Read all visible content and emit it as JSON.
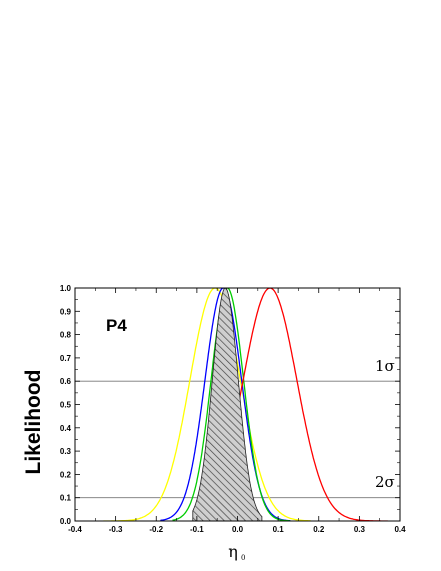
{
  "chart_data": {
    "type": "line",
    "panel_label": "P4",
    "ylabel": "Likelihood",
    "xlabel": "η",
    "xlabel_subscript": "0",
    "xlim": [
      -0.4,
      0.4
    ],
    "ylim": [
      0.0,
      1.0
    ],
    "xticks": [
      -0.4,
      -0.3,
      -0.2,
      -0.1,
      0.0,
      0.1,
      0.2,
      0.3,
      0.4
    ],
    "xtick_labels": [
      "-0.4",
      "-0.3",
      "-0.2",
      "-0.1",
      "0.0",
      "0.1",
      "0.2",
      "0.3",
      "0.4"
    ],
    "yticks": [
      0.0,
      0.1,
      0.2,
      0.3,
      0.4,
      0.5,
      0.6,
      0.7,
      0.8,
      0.9,
      1.0
    ],
    "ytick_labels": [
      "0.0",
      "0.1",
      "0.2",
      "0.3",
      "0.4",
      "0.5",
      "0.6",
      "0.7",
      "0.8",
      "0.9",
      "1.0"
    ],
    "reference_lines": [
      {
        "y": 0.6,
        "label": "1σ"
      },
      {
        "y": 0.1,
        "label": "2σ"
      }
    ],
    "series": [
      {
        "color": "#ffff00",
        "peak_x": -0.055,
        "width": 0.062,
        "extent": [
          -0.33,
          0.18
        ]
      },
      {
        "color": "#0000ff",
        "peak_x": -0.035,
        "width": 0.045,
        "extent": [
          -0.19,
          0.13
        ]
      },
      {
        "color": "#00cc00",
        "peak_x": -0.025,
        "width": 0.04,
        "extent": [
          -0.16,
          0.13
        ]
      },
      {
        "color": "#ff0000",
        "peak_x": 0.08,
        "width": 0.066,
        "extent": [
          -0.1,
          0.37
        ]
      },
      {
        "color": "#000000",
        "peak_x": -0.03,
        "width": 0.032,
        "extent": [
          -0.11,
          0.06
        ],
        "style": "hatched-fill"
      }
    ]
  }
}
